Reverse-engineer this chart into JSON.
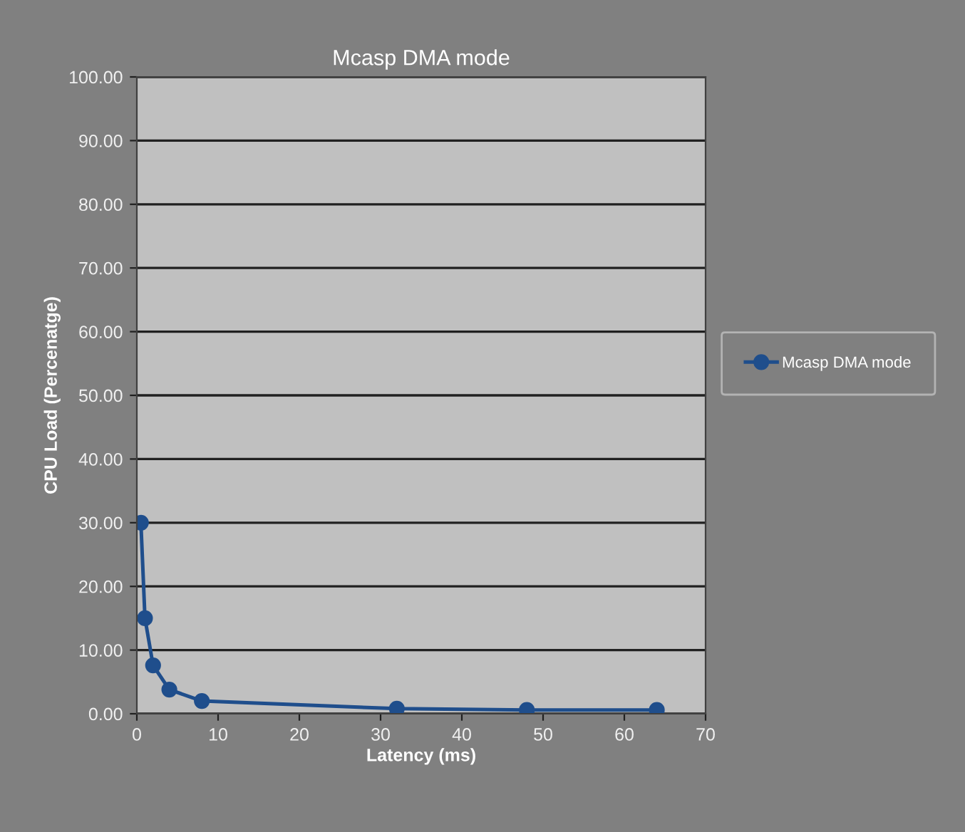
{
  "chart_data": {
    "type": "line",
    "title": "Mcasp DMA mode",
    "xlabel": "Latency (ms)",
    "ylabel": "CPU Load (Percenatge)",
    "series": [
      {
        "name": "Mcasp DMA mode",
        "color": "#1f4e8c",
        "x": [
          0.5,
          1,
          2,
          4,
          8,
          32,
          48,
          64
        ],
        "values": [
          30,
          15,
          7.6,
          3.8,
          2.0,
          0.8,
          0.6,
          0.6
        ]
      }
    ],
    "xlim": [
      0,
      70
    ],
    "xticks": [
      0,
      10,
      20,
      30,
      40,
      50,
      60,
      70
    ],
    "ylim": [
      0,
      100
    ],
    "yticks": [
      {
        "value": 0,
        "label": "0.00"
      },
      {
        "value": 10,
        "label": "10.00"
      },
      {
        "value": 20,
        "label": "20.00"
      },
      {
        "value": 30,
        "label": "30.00"
      },
      {
        "value": 40,
        "label": "40.00"
      },
      {
        "value": 50,
        "label": "50.00"
      },
      {
        "value": 60,
        "label": "60.00"
      },
      {
        "value": 70,
        "label": "70.00"
      },
      {
        "value": 80,
        "label": "80.00"
      },
      {
        "value": 90,
        "label": "90.00"
      },
      {
        "value": 100,
        "label": "100.00"
      }
    ],
    "grid": "y",
    "legend": "right",
    "marker": "circle",
    "line_style": "solid"
  }
}
